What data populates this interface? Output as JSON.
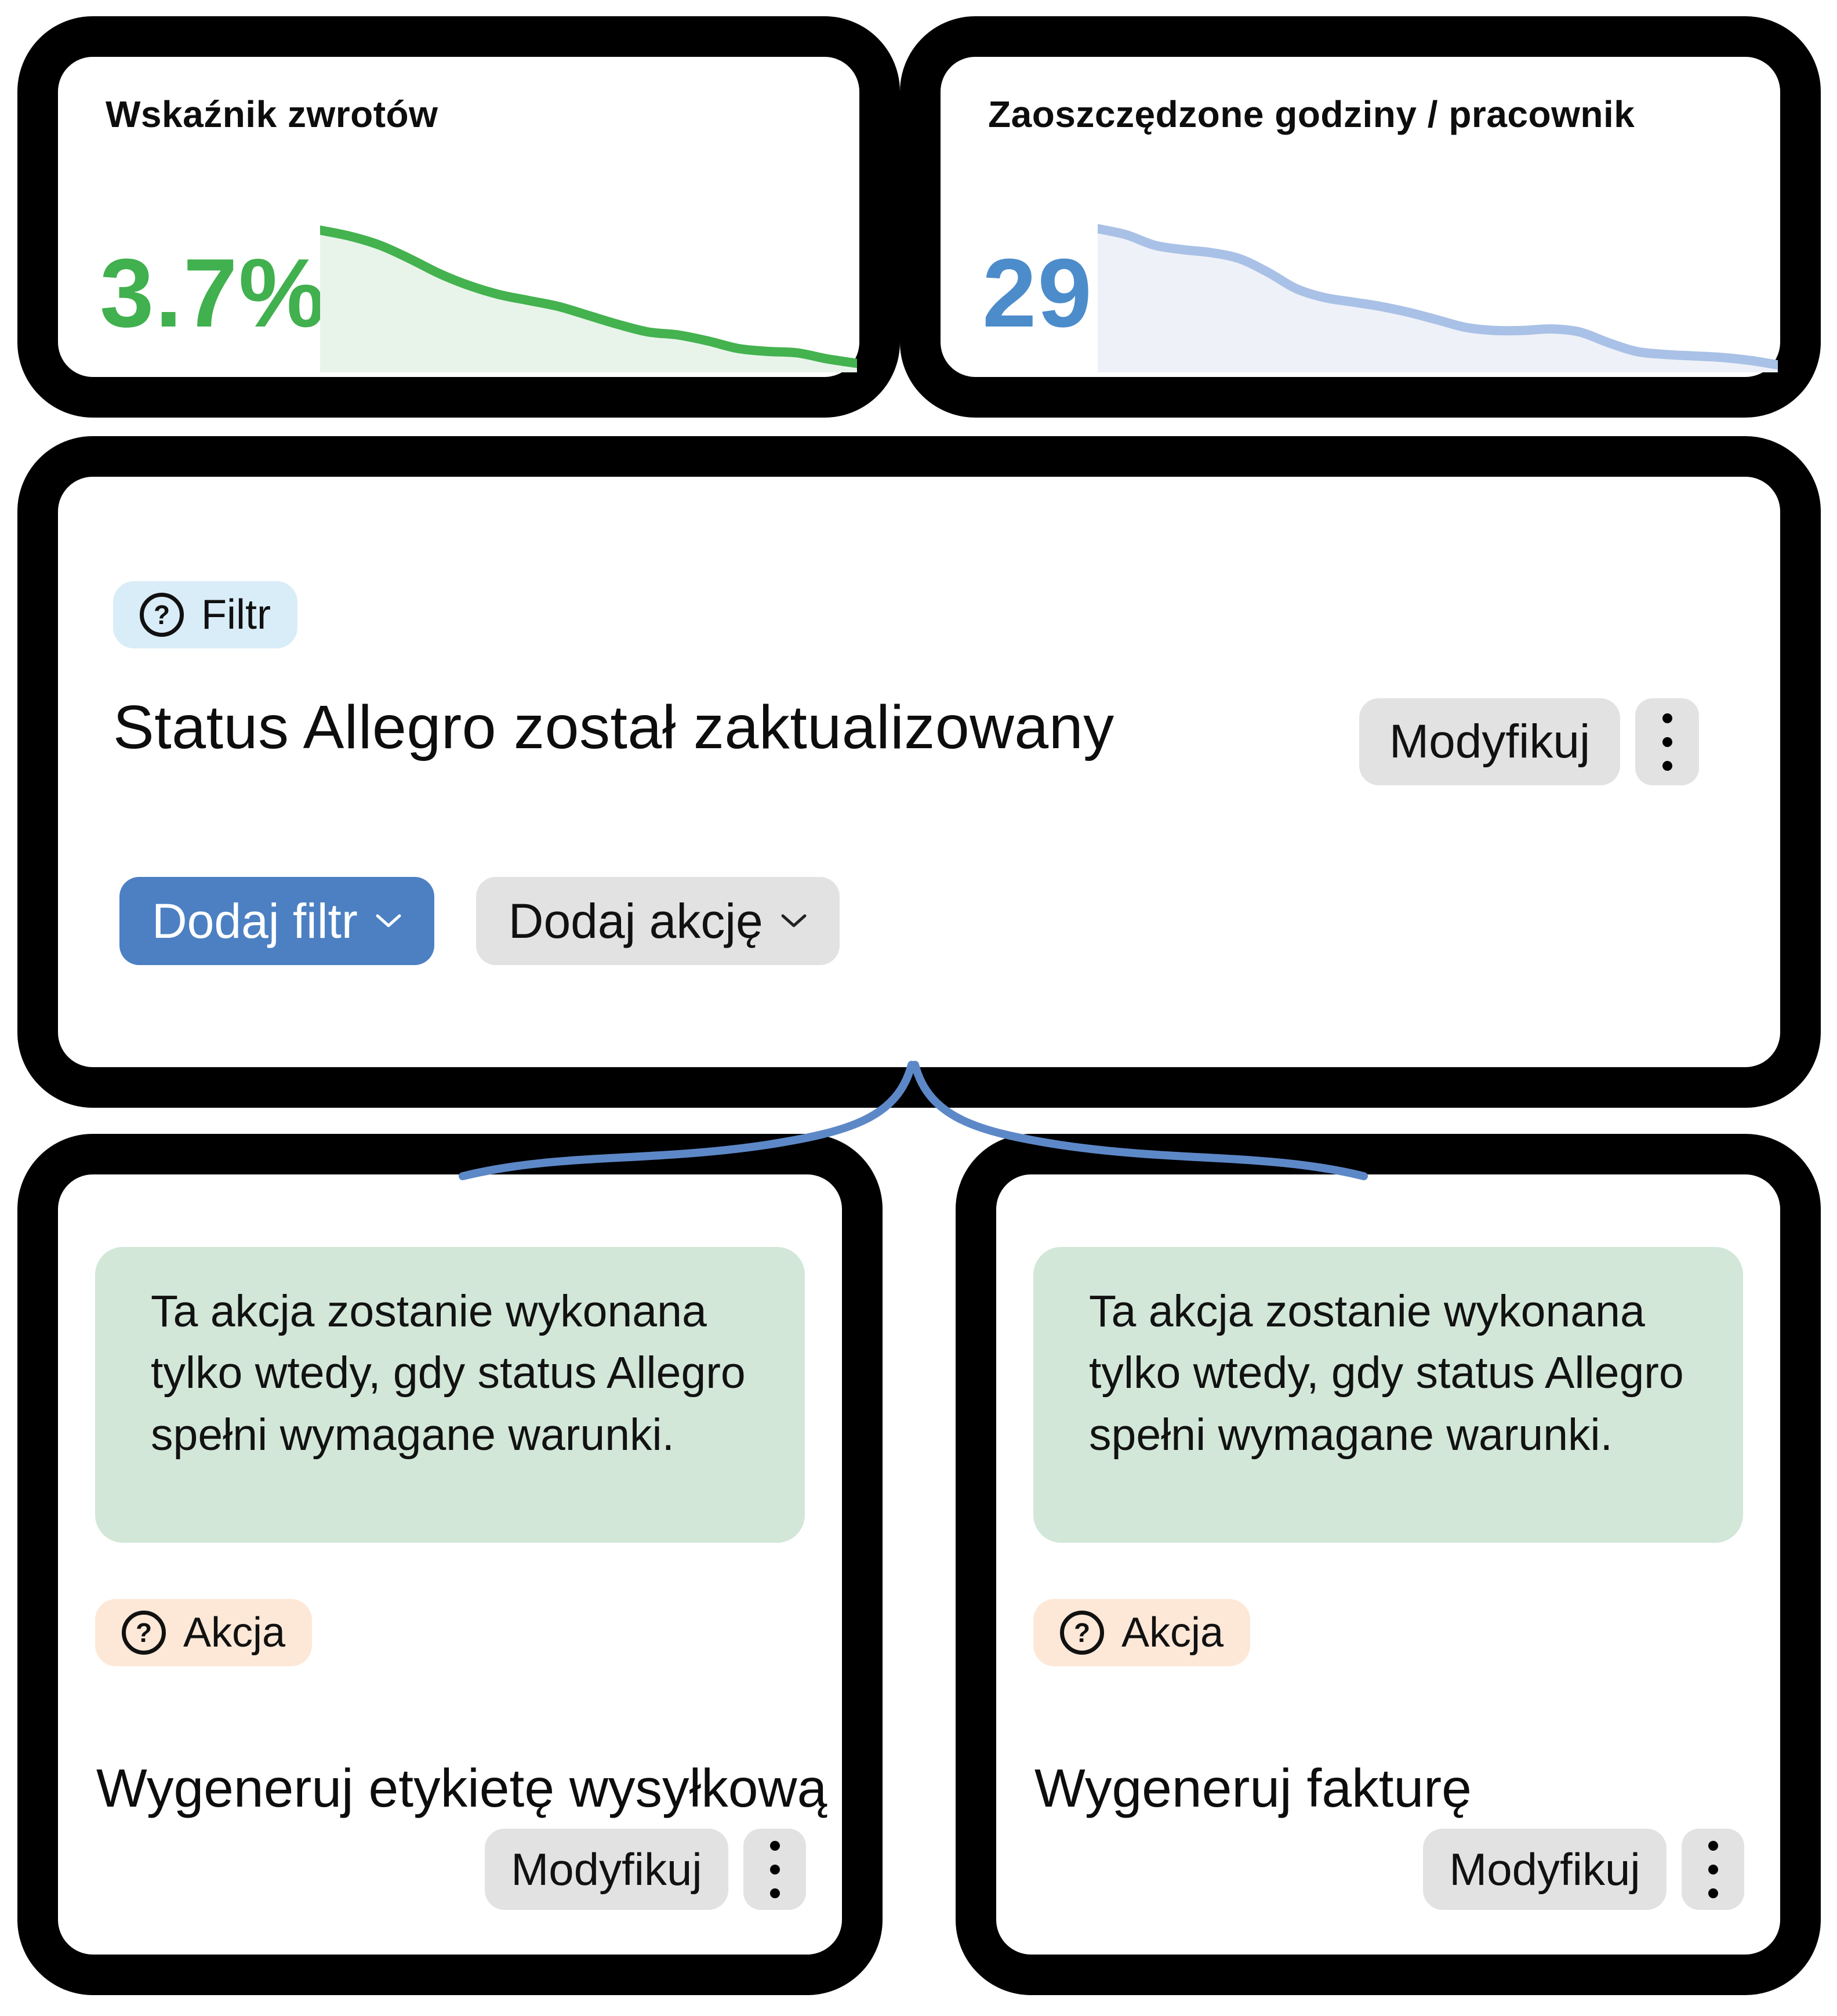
{
  "colors": {
    "accent_green": "#41B04E",
    "accent_blue": "#4C8CCB",
    "connector_blue": "#5D88C8",
    "filter_badge_bg": "#D9EDF8",
    "action_badge_bg": "#FDE8D7",
    "note_bg": "#D2E7D8",
    "primary_button_bg": "#4C80C2",
    "secondary_button_bg": "#E2E2E2",
    "card_border": "#000000",
    "card_bg": "#FFFFFF"
  },
  "icons": {
    "question_mark": "?"
  },
  "kpi_cards": [
    {
      "title": "Wskaźnik zwrotów",
      "value": "3.7%"
    },
    {
      "title": "Zaoszczędzone godziny / pracownik",
      "value": "29,1"
    }
  ],
  "filter_card": {
    "badge": {
      "label": "Filtr",
      "icon": "question-circle-icon"
    },
    "title": "Status Allegro został zaktualizowany",
    "modify_button": "Modyfikuj",
    "menu_icon": "kebab-menu-icon",
    "add_filter_button": "Dodaj filtr",
    "add_action_button": "Dodaj akcję"
  },
  "action_cards": [
    {
      "note": "Ta akcja zostanie wykonana tylko wtedy, gdy status Allegro spełni wymagane warunki.",
      "badge": {
        "label": "Akcja",
        "icon": "question-circle-icon"
      },
      "title": "Wygeneruj etykietę wysyłkową",
      "modify_button": "Modyfikuj"
    },
    {
      "note": "Ta akcja zostanie wykonana tylko wtedy, gdy status Allegro spełni wymagane warunki.",
      "badge": {
        "label": "Akcja",
        "icon": "question-circle-icon"
      },
      "title": "Wygeneruj fakturę",
      "modify_button": "Modyfikuj"
    }
  ],
  "chart_data": [
    {
      "type": "area",
      "title": "Wskaźnik zwrotów",
      "value_label": "3.7%",
      "trend": "declining",
      "xlabel": "",
      "ylabel": "",
      "axes_hidden": true,
      "grid": false,
      "legend": "none",
      "x_range": [
        0,
        100
      ],
      "y_range": [
        0,
        100
      ],
      "values": [
        95,
        91,
        85,
        76,
        66,
        58,
        52,
        48,
        44,
        38,
        32,
        27,
        25,
        21,
        16,
        14,
        13,
        9,
        6
      ],
      "line_color": "#44B24F",
      "fill_color": "#E8F4EA"
    },
    {
      "type": "area",
      "title": "Zaoszczędzone godziny / pracownik",
      "value_label": "29,1",
      "trend": "declining",
      "xlabel": "",
      "ylabel": "",
      "axes_hidden": true,
      "grid": false,
      "legend": "none",
      "x_range": [
        0,
        100
      ],
      "y_range": [
        0,
        100
      ],
      "values": [
        96,
        92,
        85,
        82,
        80,
        76,
        67,
        56,
        50,
        47,
        44,
        40,
        35,
        30,
        28,
        28,
        29,
        27,
        20,
        14,
        12,
        11,
        10,
        8,
        5
      ],
      "line_color": "#A9C1E6",
      "fill_color": "#EEF1F8"
    }
  ]
}
